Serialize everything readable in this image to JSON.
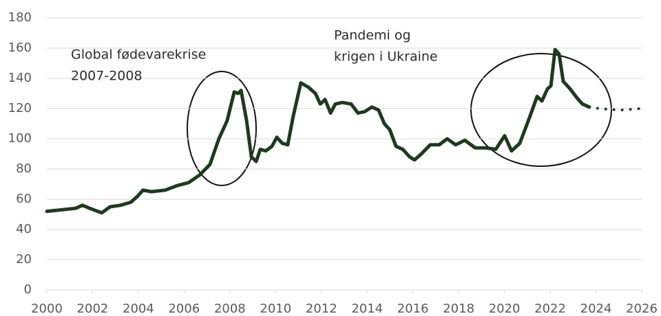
{
  "chart_data": {
    "type": "line",
    "annotations": [
      [
        "Global fødevarekrise",
        "2007-2008"
      ],
      [
        "Pandemi og",
        "krigen i Ukraine"
      ]
    ],
    "series": [
      {
        "color": "#1e3a1e",
        "dash": "solid",
        "x": [
          2000.0,
          2000.66,
          2001.26,
          2001.56,
          2001.87,
          2002.4,
          2002.77,
          2003.22,
          2003.67,
          2003.97,
          2004.2,
          2004.57,
          2005.17,
          2005.7,
          2006.2,
          2006.68,
          2007.13,
          2007.52,
          2007.88,
          2008.19,
          2008.37,
          2008.49,
          2008.73,
          2008.94,
          2009.15,
          2009.33,
          2009.57,
          2009.84,
          2010.05,
          2010.29,
          2010.53,
          2010.77,
          2011.1,
          2011.44,
          2011.74,
          2011.95,
          2012.16,
          2012.4,
          2012.61,
          2012.91,
          2013.3,
          2013.6,
          2013.9,
          2014.2,
          2014.5,
          2014.75,
          2014.99,
          2015.26,
          2015.56,
          2015.86,
          2016.07,
          2016.37,
          2016.76,
          2017.15,
          2017.5,
          2017.87,
          2018.27,
          2018.72,
          2019.17,
          2019.62,
          2020.01,
          2020.31,
          2020.67,
          2021.07,
          2021.43,
          2021.64,
          2021.88,
          2022.03,
          2022.21,
          2022.39,
          2022.57,
          2022.87,
          2023.17,
          2023.41,
          2023.71
        ],
        "values": [
          52,
          53,
          54,
          56,
          54,
          51,
          55,
          56,
          58,
          62,
          66,
          65,
          66,
          69,
          71,
          76,
          83,
          100,
          112,
          131,
          130,
          132,
          112,
          88,
          85,
          93,
          92,
          95,
          101,
          97,
          96,
          115,
          137,
          134,
          130,
          123,
          126,
          117,
          123,
          124,
          123,
          117,
          118,
          121,
          119,
          110,
          106,
          95,
          93,
          88,
          86,
          90,
          96,
          96,
          100,
          96,
          99,
          94,
          94,
          93,
          102,
          92,
          97,
          113,
          128,
          125,
          133,
          135,
          159,
          156,
          138,
          133,
          127,
          123,
          121
        ]
      },
      {
        "color": "#1e3a1e",
        "dash": "dotted",
        "x": [
          2023.71,
          2024.13,
          2025.04,
          2026.0
        ],
        "values": [
          121,
          120,
          119,
          120
        ]
      }
    ],
    "xlim": [
      2000,
      2026
    ],
    "xticks": [
      2000,
      2002,
      2004,
      2006,
      2008,
      2010,
      2012,
      2014,
      2016,
      2018,
      2020,
      2022,
      2024,
      2026
    ],
    "ylim": [
      0,
      180
    ],
    "yticks": [
      0,
      20,
      40,
      60,
      80,
      100,
      120,
      140,
      160,
      180
    ],
    "grid": true
  }
}
